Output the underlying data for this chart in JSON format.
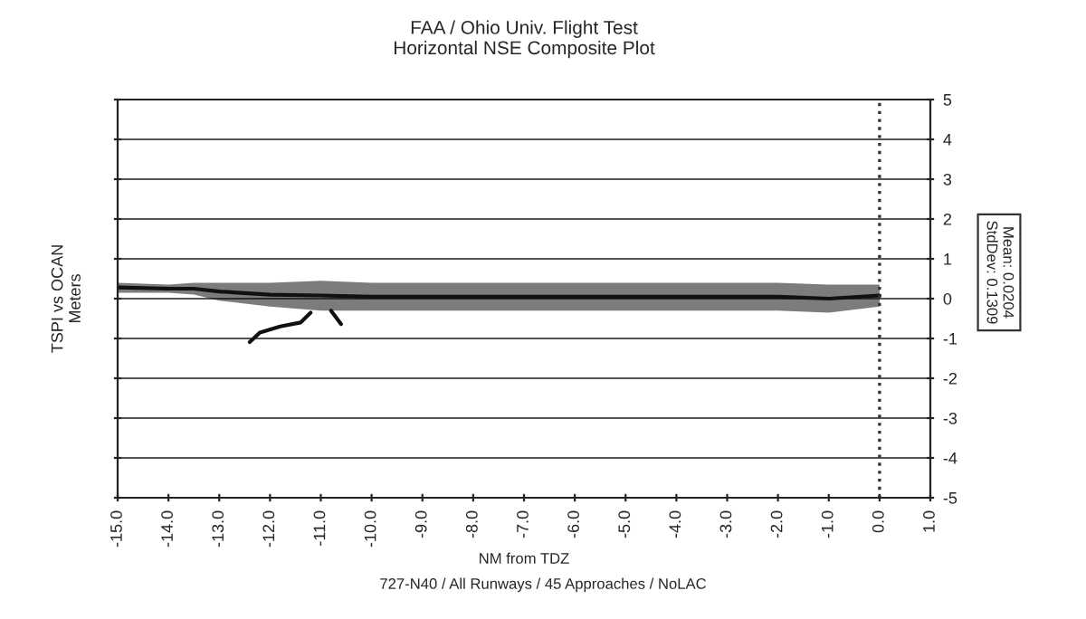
{
  "chart_data": {
    "type": "line",
    "title": "FAA / Ohio Univ. Flight Test\nHorizontal NSE Composite Plot",
    "xlabel": "NM from TDZ",
    "ylabel": "TSPI vs OCAN\nMeters",
    "xlim": [
      -15,
      1
    ],
    "xticks": [
      {
        "value": -15,
        "label": "-15.0"
      },
      {
        "value": -14,
        "label": "-14.0"
      },
      {
        "value": -13,
        "label": "-13.0"
      },
      {
        "value": -12,
        "label": "-12.0"
      },
      {
        "value": -11,
        "label": "-11.0"
      },
      {
        "value": -10,
        "label": "-10.0"
      },
      {
        "value": -9,
        "label": "-9.0"
      },
      {
        "value": -8,
        "label": "-8.0"
      },
      {
        "value": -7,
        "label": "-7.0"
      },
      {
        "value": -6,
        "label": "-6.0"
      },
      {
        "value": -5,
        "label": "-5.0"
      },
      {
        "value": -4,
        "label": "-4.0"
      },
      {
        "value": -3,
        "label": "-3.0"
      },
      {
        "value": -2,
        "label": "-2.0"
      },
      {
        "value": -1,
        "label": "-1.0"
      },
      {
        "value": 0,
        "label": "0.0"
      },
      {
        "value": 1,
        "label": "1.0"
      }
    ],
    "ylim": [
      -5,
      5
    ],
    "yticks": [
      -5,
      -4,
      -3,
      -2,
      -1,
      0,
      1,
      2,
      3,
      4,
      5
    ],
    "grid": "y",
    "series": [
      {
        "color": "#111111",
        "x": [
          -15,
          -14,
          -13.5,
          -13,
          -12,
          -11,
          -10,
          -8,
          -6,
          -4,
          -2,
          -1,
          0
        ],
        "values": [
          0.28,
          0.25,
          0.25,
          0.18,
          0.1,
          0.08,
          0.05,
          0.05,
          0.05,
          0.05,
          0.05,
          0,
          0.08
        ],
        "lower": [
          0.15,
          0.15,
          0.1,
          -0.05,
          -0.2,
          -0.3,
          -0.3,
          -0.3,
          -0.3,
          -0.3,
          -0.3,
          -0.35,
          -0.2
        ],
        "upper": [
          0.4,
          0.35,
          0.4,
          0.4,
          0.4,
          0.45,
          0.4,
          0.4,
          0.4,
          0.4,
          0.4,
          0.35,
          0.35
        ]
      },
      {
        "color": "#111111",
        "x": [
          -12.4,
          -12.2,
          -11.8,
          -11.4,
          -11.2
        ],
        "values": [
          -1.09,
          -0.85,
          -0.7,
          -0.6,
          -0.35
        ]
      },
      {
        "color": "#111111",
        "x": [
          -10.8,
          -10.6
        ],
        "values": [
          -0.3,
          -0.64
        ]
      }
    ],
    "ref_lines": [
      {
        "axis": "x",
        "value": 0,
        "color": "#333333",
        "line_style": "dotted"
      }
    ],
    "annotations": [
      "727-N40 / All Runways / 45 Approaches / NoLAC",
      "Mean: 0.0204\nStdDev: 0.1309"
    ]
  }
}
